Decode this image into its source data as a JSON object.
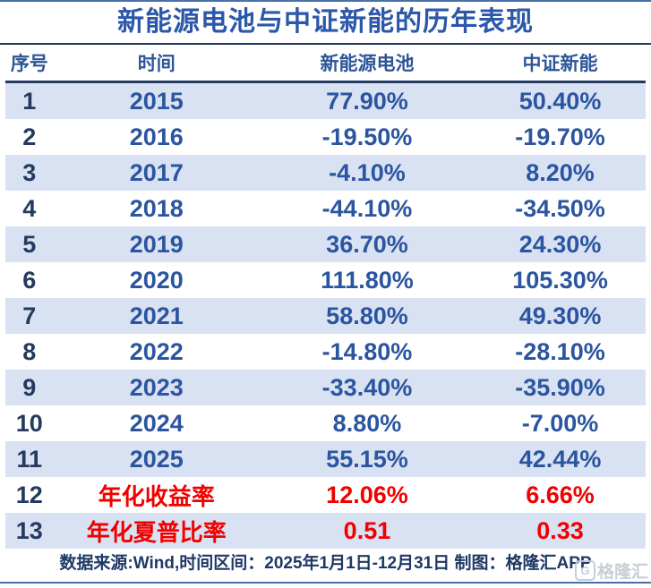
{
  "title": "新能源电池与中证新能的历年表现",
  "table": {
    "columns": [
      {
        "key": "index",
        "label": "序号"
      },
      {
        "key": "period",
        "label": "时间"
      },
      {
        "key": "battery",
        "label": "新能源电池"
      },
      {
        "key": "csi",
        "label": "中证新能"
      }
    ],
    "rows": [
      {
        "index": "1",
        "period": "2015",
        "battery": "77.90%",
        "csi": "50.40%",
        "highlight": false
      },
      {
        "index": "2",
        "period": "2016",
        "battery": "-19.50%",
        "csi": "-19.70%",
        "highlight": false
      },
      {
        "index": "3",
        "period": "2017",
        "battery": "-4.10%",
        "csi": "8.20%",
        "highlight": false
      },
      {
        "index": "4",
        "period": "2018",
        "battery": "-44.10%",
        "csi": "-34.50%",
        "highlight": false
      },
      {
        "index": "5",
        "period": "2019",
        "battery": "36.70%",
        "csi": "24.30%",
        "highlight": false
      },
      {
        "index": "6",
        "period": "2020",
        "battery": "111.80%",
        "csi": "105.30%",
        "highlight": false
      },
      {
        "index": "7",
        "period": "2021",
        "battery": "58.80%",
        "csi": "49.30%",
        "highlight": false
      },
      {
        "index": "8",
        "period": "2022",
        "battery": "-14.80%",
        "csi": "-28.10%",
        "highlight": false
      },
      {
        "index": "9",
        "period": "2023",
        "battery": "-33.40%",
        "csi": "-35.90%",
        "highlight": false
      },
      {
        "index": "10",
        "period": "2024",
        "battery": "8.80%",
        "csi": "-7.00%",
        "highlight": false
      },
      {
        "index": "11",
        "period": "2025",
        "battery": "55.15%",
        "csi": "42.44%",
        "highlight": false
      },
      {
        "index": "12",
        "period": "年化收益率",
        "battery": "12.06%",
        "csi": "6.66%",
        "highlight": true
      },
      {
        "index": "13",
        "period": "年化夏普比率",
        "battery": "0.51",
        "csi": "0.33",
        "highlight": true
      }
    ]
  },
  "chart_data": {
    "type": "table",
    "title": "新能源电池与中证新能的历年表现",
    "categories": [
      "2015",
      "2016",
      "2017",
      "2018",
      "2019",
      "2020",
      "2021",
      "2022",
      "2023",
      "2024",
      "2025"
    ],
    "series": [
      {
        "name": "新能源电池",
        "values": [
          77.9,
          -19.5,
          -4.1,
          -44.1,
          36.7,
          111.8,
          58.8,
          -14.8,
          -33.4,
          8.8,
          55.15
        ]
      },
      {
        "name": "中证新能",
        "values": [
          50.4,
          -19.7,
          8.2,
          -34.5,
          24.3,
          105.3,
          49.3,
          -28.1,
          -35.9,
          -7.0,
          42.44
        ]
      }
    ],
    "summary_rows": [
      {
        "label": "年化收益率",
        "新能源电池": "12.06%",
        "中证新能": "6.66%"
      },
      {
        "label": "年化夏普比率",
        "新能源电池": "0.51",
        "中证新能": "0.33"
      }
    ],
    "unit": "percent"
  },
  "footer": {
    "note": "数据来源:Wind,时间区间：2025年1月1日-12月31日 制图：格隆汇APP"
  },
  "watermark": {
    "logo_glyph": "G",
    "text": "格隆汇"
  },
  "colors": {
    "title": "#2b58a8",
    "header_text": "#2d5598",
    "index_text": "#243a5e",
    "value_text": "#2b55a0",
    "highlight_text": "#f20000",
    "stripe": "#d9e2f2",
    "divider": "#223a64",
    "frame": "#4872a6",
    "footer_text": "#1f3966",
    "watermark": "#c6cbd5"
  }
}
